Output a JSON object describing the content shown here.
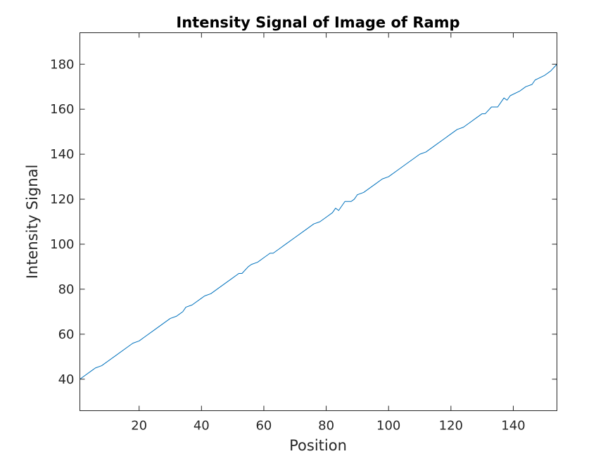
{
  "chart_data": {
    "type": "line",
    "title": "Intensity Signal of Image of Ramp",
    "xlabel": "Position",
    "ylabel": "Intensity Signal",
    "xlim": [
      1,
      154
    ],
    "ylim": [
      26,
      194
    ],
    "xticks": [
      20,
      40,
      60,
      80,
      100,
      120,
      140
    ],
    "yticks": [
      40,
      60,
      80,
      100,
      120,
      140,
      160,
      180
    ],
    "xtick_labels": [
      "20",
      "40",
      "60",
      "80",
      "100",
      "120",
      "140"
    ],
    "ytick_labels": [
      "40",
      "60",
      "80",
      "100",
      "120",
      "140",
      "160",
      "180"
    ],
    "grid": false,
    "series": [
      {
        "color": "#0072bd",
        "x": [
          1,
          5,
          6,
          8,
          12,
          16,
          18,
          20,
          22,
          25,
          28,
          30,
          32,
          34,
          35,
          37,
          40,
          41,
          43,
          46,
          48,
          50,
          52,
          53,
          55,
          56,
          58,
          60,
          62,
          63,
          65,
          67,
          70,
          73,
          76,
          78,
          80,
          82,
          83,
          84,
          86,
          88,
          89,
          90,
          92,
          94,
          96,
          98,
          100,
          103,
          106,
          108,
          110,
          112,
          115,
          118,
          120,
          122,
          124,
          126,
          128,
          130,
          131,
          133,
          135,
          136,
          137,
          138,
          139,
          142,
          144,
          146,
          147,
          150,
          152,
          154
        ],
        "y": [
          40,
          44,
          45,
          46,
          50,
          54,
          56,
          57,
          59,
          62,
          65,
          67,
          68,
          70,
          72,
          73,
          76,
          77,
          78,
          81,
          83,
          85,
          87,
          87,
          90,
          91,
          92,
          94,
          96,
          96,
          98,
          100,
          103,
          106,
          109,
          110,
          112,
          114,
          116,
          115,
          119,
          119,
          120,
          122,
          123,
          125,
          127,
          129,
          130,
          133,
          136,
          138,
          140,
          141,
          144,
          147,
          149,
          151,
          152,
          154,
          156,
          158,
          158,
          161,
          161,
          163,
          165,
          164,
          166,
          168,
          170,
          171,
          173,
          175,
          177,
          180
        ]
      }
    ]
  }
}
